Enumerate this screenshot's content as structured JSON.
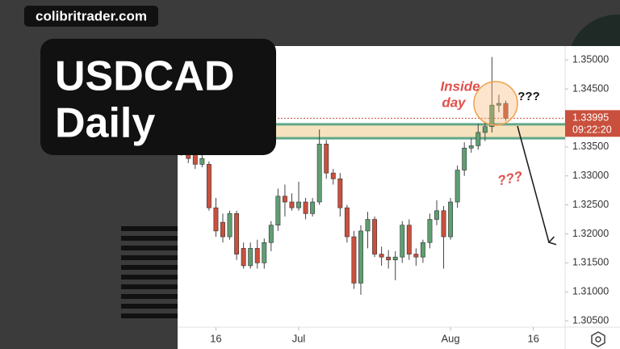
{
  "chart_data": {
    "type": "candlestick",
    "brand": "colibritrader.com",
    "title": [
      "USDCAD",
      "Daily"
    ],
    "annotations": {
      "inside_day": [
        "Inside",
        "day"
      ],
      "question_top": "???",
      "question_down": "???"
    },
    "open": [
      1.3355,
      1.337,
      1.336,
      1.332,
      1.332,
      1.3245,
      1.322,
      1.3195,
      1.3235,
      1.3175,
      1.3145,
      1.3175,
      1.315,
      1.3185,
      1.3215,
      1.3265,
      1.3255,
      1.3245,
      1.3255,
      1.3235,
      1.3255,
      1.3355,
      1.3305,
      1.3295,
      1.3245,
      1.3195,
      1.3115,
      1.3205,
      1.3225,
      1.3165,
      1.316,
      1.3155,
      1.316,
      1.3215,
      1.3165,
      1.316,
      1.3185,
      1.3225,
      1.324,
      1.3195,
      1.3255,
      1.331,
      1.3348,
      1.3352,
      1.3375,
      1.3385,
      1.3422,
      1.3425
    ],
    "high": [
      1.3362,
      1.3378,
      1.3368,
      1.3338,
      1.3325,
      1.3262,
      1.3235,
      1.324,
      1.324,
      1.3185,
      1.3185,
      1.319,
      1.3192,
      1.3222,
      1.3278,
      1.3285,
      1.327,
      1.329,
      1.3262,
      1.3262,
      1.338,
      1.3362,
      1.3312,
      1.3305,
      1.325,
      1.3205,
      1.3215,
      1.3238,
      1.323,
      1.3178,
      1.3172,
      1.317,
      1.3222,
      1.3225,
      1.3175,
      1.319,
      1.3235,
      1.3258,
      1.3248,
      1.3262,
      1.3318,
      1.3358,
      1.3365,
      1.339,
      1.3392,
      1.3505,
      1.344,
      1.343
    ],
    "low": [
      1.3335,
      1.3322,
      1.3312,
      1.3315,
      1.324,
      1.3195,
      1.3185,
      1.319,
      1.3155,
      1.314,
      1.314,
      1.314,
      1.314,
      1.317,
      1.3205,
      1.323,
      1.324,
      1.324,
      1.3225,
      1.323,
      1.325,
      1.3295,
      1.3285,
      1.323,
      1.3185,
      1.3105,
      1.3095,
      1.3175,
      1.316,
      1.3145,
      1.314,
      1.312,
      1.315,
      1.3155,
      1.3145,
      1.315,
      1.3175,
      1.3215,
      1.314,
      1.319,
      1.3245,
      1.33,
      1.334,
      1.3345,
      1.336,
      1.3375,
      1.341,
      1.3395
    ],
    "close": [
      1.3345,
      1.333,
      1.332,
      1.333,
      1.3245,
      1.3205,
      1.3195,
      1.3235,
      1.3165,
      1.3145,
      1.3175,
      1.315,
      1.3185,
      1.3215,
      1.3265,
      1.3255,
      1.3245,
      1.3255,
      1.3235,
      1.3255,
      1.3355,
      1.3305,
      1.3295,
      1.3245,
      1.3195,
      1.3115,
      1.3205,
      1.3225,
      1.3165,
      1.316,
      1.3155,
      1.316,
      1.3215,
      1.3165,
      1.316,
      1.3185,
      1.3225,
      1.324,
      1.3195,
      1.3255,
      1.331,
      1.3348,
      1.3352,
      1.3375,
      1.3385,
      1.3422,
      1.3425,
      1.33995
    ],
    "up_color": "#5f9e72",
    "down_color": "#c9503d",
    "zone": [
      1.3365,
      1.3389
    ],
    "zone_color": "#f7e2bf",
    "zone_line_color": "#5fa889",
    "current_price": 1.33995,
    "countdown": "09:22:20",
    "xlim": [
      -0.55,
      55.6
    ],
    "xticks": [
      {
        "value": 5,
        "label": "16"
      },
      {
        "value": 17,
        "label": "Jul"
      },
      {
        "value": 39,
        "label": "Aug"
      },
      {
        "value": 51,
        "label": "16"
      }
    ],
    "ylim": [
      1.3039,
      1.3524
    ],
    "yticks": [
      {
        "value": 1.35,
        "label": "1.35000"
      },
      {
        "value": 1.345,
        "label": "1.34500"
      },
      {
        "value": 1.335,
        "label": "1.33500"
      },
      {
        "value": 1.33,
        "label": "1.33000"
      },
      {
        "value": 1.325,
        "label": "1.32500"
      },
      {
        "value": 1.32,
        "label": "1.32000"
      },
      {
        "value": 1.315,
        "label": "1.31500"
      },
      {
        "value": 1.31,
        "label": "1.31000"
      },
      {
        "value": 1.305,
        "label": "1.30500"
      }
    ]
  }
}
